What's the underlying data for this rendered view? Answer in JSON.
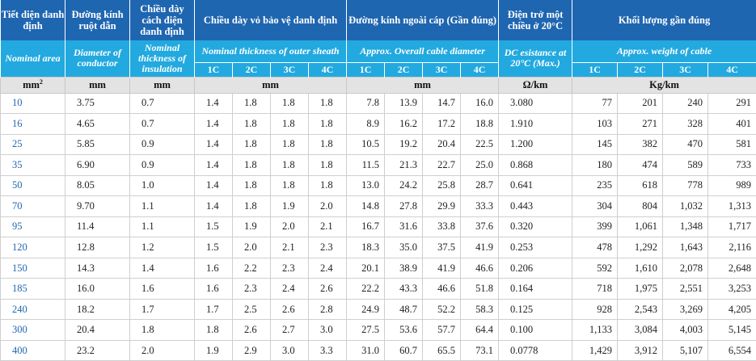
{
  "headers_vn": {
    "area": "Tiết diện danh định",
    "diameter": "Đường kính ruột dẫn",
    "insulation": "Chiều dày cách điện danh định",
    "sheath": "Chiều dày vỏ bảo vệ danh định",
    "overall": "Đường kính ngoài cáp (Gần đúng)",
    "resistance": "Điện trở một chiều ở 20°C",
    "weight": "Khối lượng gần đúng"
  },
  "headers_en": {
    "area": "Nominal area",
    "diameter": "Diameter of conductor",
    "insulation": "Nominal thickness of insulation",
    "sheath": "Nominal thickness of outer sheath",
    "overall": "Approx. Overall cable diameter",
    "resistance": "DC esistance at 20°C (Max.)",
    "weight": "Approx. weight of cable"
  },
  "cores": [
    "1C",
    "2C",
    "3C",
    "4C"
  ],
  "units": {
    "area": "mm²",
    "diameter": "mm",
    "insulation": "mm",
    "sheath": "mm",
    "overall": "mm",
    "resistance": "Ω/km",
    "weight": "Kg/km"
  },
  "rows": [
    {
      "area": "10",
      "diameter": "3.75",
      "insulation": "0.7",
      "sheath": [
        "1.4",
        "1.8",
        "1.8",
        "1.8"
      ],
      "overall": [
        "7.8",
        "13.9",
        "14.7",
        "16.0"
      ],
      "resistance": "3.080",
      "weight": [
        "77",
        "201",
        "240",
        "291"
      ]
    },
    {
      "area": "16",
      "diameter": "4.65",
      "insulation": "0.7",
      "sheath": [
        "1.4",
        "1.8",
        "1.8",
        "1.8"
      ],
      "overall": [
        "8.9",
        "16.2",
        "17.2",
        "18.8"
      ],
      "resistance": "1.910",
      "weight": [
        "103",
        "271",
        "328",
        "401"
      ]
    },
    {
      "area": "25",
      "diameter": "5.85",
      "insulation": "0.9",
      "sheath": [
        "1.4",
        "1.8",
        "1.8",
        "1.8"
      ],
      "overall": [
        "10.5",
        "19.2",
        "20.4",
        "22.5"
      ],
      "resistance": "1.200",
      "weight": [
        "145",
        "382",
        "470",
        "581"
      ]
    },
    {
      "area": "35",
      "diameter": "6.90",
      "insulation": "0.9",
      "sheath": [
        "1.4",
        "1.8",
        "1.8",
        "1.8"
      ],
      "overall": [
        "11.5",
        "21.3",
        "22.7",
        "25.0"
      ],
      "resistance": "0.868",
      "weight": [
        "180",
        "474",
        "589",
        "733"
      ]
    },
    {
      "area": "50",
      "diameter": "8.05",
      "insulation": "1.0",
      "sheath": [
        "1.4",
        "1.8",
        "1.8",
        "1.8"
      ],
      "overall": [
        "13.0",
        "24.2",
        "25.8",
        "28.7"
      ],
      "resistance": "0.641",
      "weight": [
        "235",
        "618",
        "778",
        "989"
      ]
    },
    {
      "area": "70",
      "diameter": "9.70",
      "insulation": "1.1",
      "sheath": [
        "1.4",
        "1.8",
        "1.9",
        "2.0"
      ],
      "overall": [
        "14.8",
        "27.8",
        "29.9",
        "33.3"
      ],
      "resistance": "0.443",
      "weight": [
        "304",
        "804",
        "1,032",
        "1,313"
      ]
    },
    {
      "area": "95",
      "diameter": "11.4",
      "insulation": "1.1",
      "sheath": [
        "1.5",
        "1.9",
        "2.0",
        "2.1"
      ],
      "overall": [
        "16.7",
        "31.6",
        "33.8",
        "37.6"
      ],
      "resistance": "0.320",
      "weight": [
        "399",
        "1,061",
        "1,348",
        "1,717"
      ]
    },
    {
      "area": "120",
      "diameter": "12.8",
      "insulation": "1.2",
      "sheath": [
        "1.5",
        "2.0",
        "2.1",
        "2.3"
      ],
      "overall": [
        "18.3",
        "35.0",
        "37.5",
        "41.9"
      ],
      "resistance": "0.253",
      "weight": [
        "478",
        "1,292",
        "1,643",
        "2,116"
      ]
    },
    {
      "area": "150",
      "diameter": "14.3",
      "insulation": "1.4",
      "sheath": [
        "1.6",
        "2.2",
        "2.3",
        "2.4"
      ],
      "overall": [
        "20.1",
        "38.9",
        "41.9",
        "46.6"
      ],
      "resistance": "0.206",
      "weight": [
        "592",
        "1,610",
        "2,078",
        "2,648"
      ]
    },
    {
      "area": "185",
      "diameter": "16.0",
      "insulation": "1.6",
      "sheath": [
        "1.6",
        "2.3",
        "2.4",
        "2.6"
      ],
      "overall": [
        "22.2",
        "43.3",
        "46.6",
        "51.8"
      ],
      "resistance": "0.164",
      "weight": [
        "718",
        "1,975",
        "2,551",
        "3,253"
      ]
    },
    {
      "area": "240",
      "diameter": "18.2",
      "insulation": "1.7",
      "sheath": [
        "1.7",
        "2.5",
        "2.6",
        "2.8"
      ],
      "overall": [
        "24.9",
        "48.7",
        "52.2",
        "58.3"
      ],
      "resistance": "0.125",
      "weight": [
        "928",
        "2,543",
        "3,269",
        "4,205"
      ]
    },
    {
      "area": "300",
      "diameter": "20.4",
      "insulation": "1.8",
      "sheath": [
        "1.8",
        "2.6",
        "2.7",
        "3.0"
      ],
      "overall": [
        "27.5",
        "53.6",
        "57.7",
        "64.4"
      ],
      "resistance": "0.100",
      "weight": [
        "1,133",
        "3,084",
        "4,003",
        "5,145"
      ]
    },
    {
      "area": "400",
      "diameter": "23.2",
      "insulation": "2.0",
      "sheath": [
        "1.9",
        "2.9",
        "3.0",
        "3.3"
      ],
      "overall": [
        "31.0",
        "60.7",
        "65.5",
        "73.1"
      ],
      "resistance": "0.0778",
      "weight": [
        "1,429",
        "3,912",
        "5,107",
        "6,554"
      ]
    }
  ]
}
